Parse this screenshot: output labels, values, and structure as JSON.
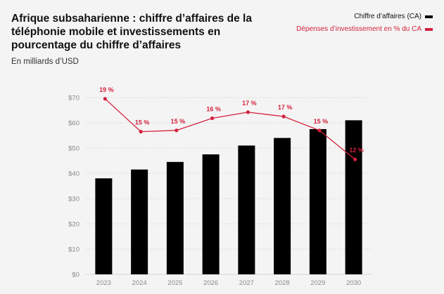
{
  "header": {
    "title": "Afrique subsaharienne : chiffre d’affaires de la téléphonie mobile et investissements en pourcentage du chiffre d’affaires",
    "subtitle": "En milliards d’USD"
  },
  "legend": {
    "revenue_label": "Chiffre d’affaires (CA)",
    "capex_label": "Dépenses d’investissement en % du CA"
  },
  "colors": {
    "bar": "#000000",
    "line": "#d4213d",
    "grid": "#cccccc",
    "tick": "#8a8a8a"
  },
  "chart_data": {
    "type": "bar",
    "title": "Afrique subsaharienne : chiffre d’affaires de la téléphonie mobile et investissements en pourcentage du chiffre d’affaires",
    "subtitle": "En milliards d’USD",
    "categories": [
      "2023",
      "2024",
      "2025",
      "2026",
      "2027",
      "2028",
      "2029",
      "2030"
    ],
    "ylim": [
      0,
      70
    ],
    "yticks": [
      0,
      10,
      20,
      30,
      40,
      50,
      60,
      70
    ],
    "ytick_labels": [
      "$0",
      "$10",
      "$20",
      "$30",
      "$40",
      "$50",
      "$60",
      "$70"
    ],
    "grid": true,
    "legend_position": "top-right",
    "series": [
      {
        "name": "Chiffre d’affaires (CA)",
        "type": "bar",
        "values": [
          38,
          41.5,
          44.5,
          47.5,
          51,
          54,
          57.5,
          61
        ]
      },
      {
        "name": "Dépenses d’investissement en % du CA",
        "type": "line",
        "values": [
          19,
          15,
          15,
          16,
          17,
          17,
          15,
          12
        ],
        "labels": [
          "19 %",
          "15 %",
          "15 %",
          "16 %",
          "17 %",
          "17 %",
          "15 %",
          "12 %"
        ],
        "positions_on_revenue_axis": [
          69.5,
          56.5,
          57,
          61.8,
          64.2,
          62.5,
          57,
          45.5
        ]
      }
    ]
  }
}
